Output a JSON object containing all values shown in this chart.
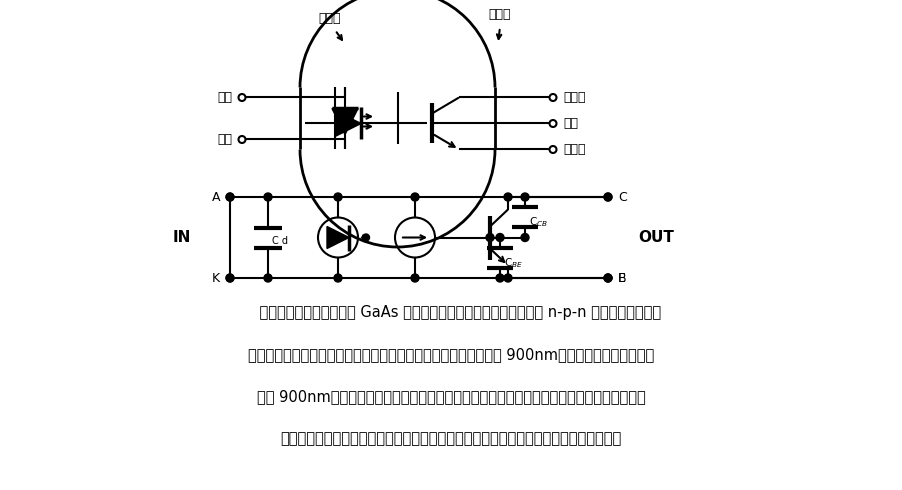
{
  "bg_color": "#ffffff",
  "lc": "black",
  "lw": 1.5,
  "figsize": [
    9.02,
    4.9
  ],
  "dpi": 100,
  "desc": [
    "    电路中的光耦合器由一个 GaAs 红外发射二极管作为输入级，一个硅 n-p-n 光晶体管作为输出",
    "级。二极管和传感器之间是一个红外透光玻璃，二极管发射波长约 900nm。传感器光晶体管响应波",
    "长约 900nm。在光晶体三极管集电极和基极之间由入射光产生的基极电流与二极管发射光成比",
    "例。集电极和基极以及基极和发射极之间的结电容决定输出电流波形的上升和下降时间。"
  ]
}
